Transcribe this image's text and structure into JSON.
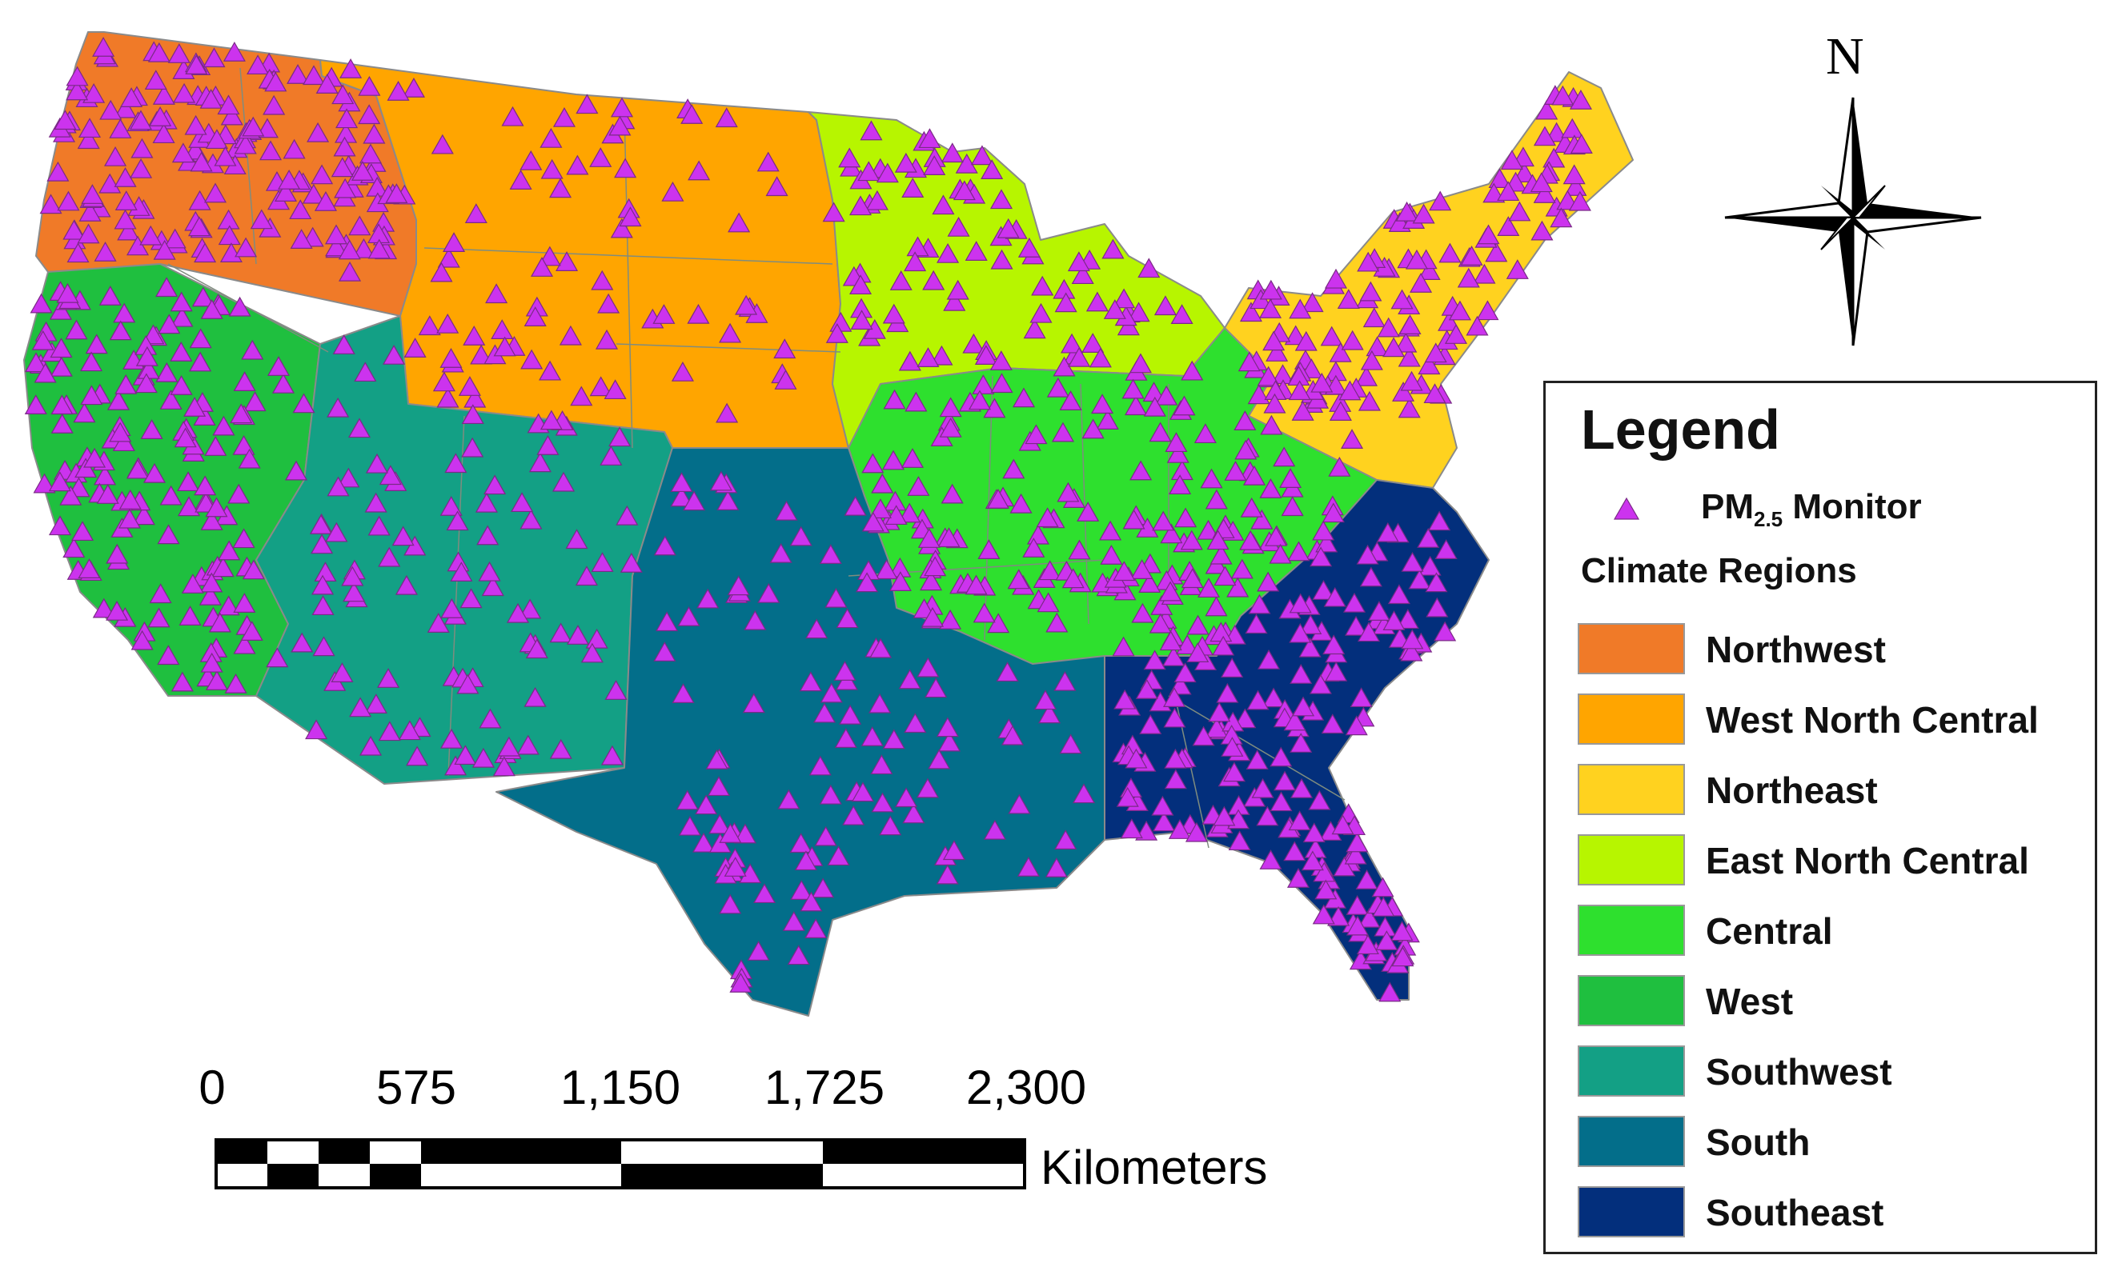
{
  "map": {
    "compass_letter": "N",
    "scale_bar": {
      "labels": [
        "0",
        "575",
        "1,150",
        "1,725",
        "2,300"
      ],
      "unit": "Kilometers"
    }
  },
  "legend": {
    "title": "Legend",
    "monitor_label_prefix": "PM",
    "monitor_label_sub": "2.5",
    "monitor_label_suffix": " Monitor",
    "monitor_color": "#cc33ee",
    "regions_title": "Climate Regions",
    "regions": [
      {
        "name": "Northwest",
        "color": "#f07a28"
      },
      {
        "name": "West North Central",
        "color": "#ffa500"
      },
      {
        "name": "Northeast",
        "color": "#ffd21f"
      },
      {
        "name": "East North Central",
        "color": "#b7f500"
      },
      {
        "name": "Central",
        "color": "#2ee02e"
      },
      {
        "name": "West",
        "color": "#1fbf3f"
      },
      {
        "name": "Southwest",
        "color": "#13a085"
      },
      {
        "name": "South",
        "color": "#036e8a"
      },
      {
        "name": "Southeast",
        "color": "#032f7c"
      }
    ]
  }
}
